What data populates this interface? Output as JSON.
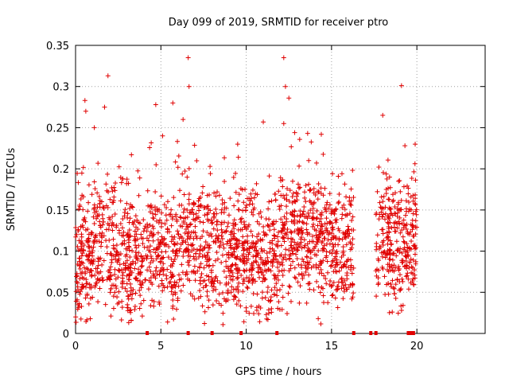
{
  "chart_data": {
    "type": "scatter",
    "title": "Day 099 of 2019, SRMTID for receiver ptro",
    "xlabel": "GPS time / hours",
    "ylabel": "SRMTID / TECUs",
    "xlim": [
      0,
      24
    ],
    "ylim": [
      0,
      0.35
    ],
    "xticks": [
      0,
      5,
      10,
      15,
      20
    ],
    "xtick_labels": [
      "0",
      "5",
      "10",
      "15",
      "20"
    ],
    "yticks": [
      0,
      0.05,
      0.1,
      0.15,
      0.2,
      0.25,
      0.3,
      0.35
    ],
    "ytick_labels": [
      "0",
      "0.05",
      "0.1",
      "0.15",
      "0.2",
      "0.25",
      "0.3",
      "0.35"
    ],
    "grid": true,
    "marker": "plus",
    "series": [
      {
        "name": "SRMTID",
        "color": "#e00000",
        "notable_points": [
          {
            "x": 0.55,
            "y": 0.283
          },
          {
            "x": 0.6,
            "y": 0.27
          },
          {
            "x": 1.1,
            "y": 0.25
          },
          {
            "x": 1.7,
            "y": 0.275
          },
          {
            "x": 1.9,
            "y": 0.313
          },
          {
            "x": 4.7,
            "y": 0.278
          },
          {
            "x": 5.1,
            "y": 0.24
          },
          {
            "x": 5.7,
            "y": 0.28
          },
          {
            "x": 6.3,
            "y": 0.26
          },
          {
            "x": 6.6,
            "y": 0.335
          },
          {
            "x": 6.65,
            "y": 0.3
          },
          {
            "x": 9.5,
            "y": 0.23
          },
          {
            "x": 11.0,
            "y": 0.257
          },
          {
            "x": 12.2,
            "y": 0.335
          },
          {
            "x": 12.3,
            "y": 0.3
          },
          {
            "x": 12.5,
            "y": 0.286
          },
          {
            "x": 12.2,
            "y": 0.255
          },
          {
            "x": 13.6,
            "y": 0.243
          },
          {
            "x": 14.4,
            "y": 0.242
          },
          {
            "x": 18.0,
            "y": 0.265
          },
          {
            "x": 18.4,
            "y": 0.19
          },
          {
            "x": 19.1,
            "y": 0.301
          },
          {
            "x": 19.3,
            "y": 0.228
          },
          {
            "x": 19.9,
            "y": 0.23
          },
          {
            "x": 19.1,
            "y": 0.028
          }
        ],
        "zero_points_x": [
          4.2,
          6.6,
          8.0,
          9.7,
          11.8,
          16.3,
          17.3,
          17.6,
          19.5,
          19.6,
          19.7,
          19.8
        ]
      }
    ],
    "density_profile": {
      "active_intervals_hours": [
        [
          0.0,
          16.3
        ],
        [
          17.6,
          20.0
        ]
      ],
      "typical_range": [
        0.02,
        0.2
      ],
      "median_by_hour": [
        0.09,
        0.11,
        0.1,
        0.08,
        0.1,
        0.09,
        0.11,
        0.1,
        0.1,
        0.1,
        0.09,
        0.09,
        0.12,
        0.12,
        0.11,
        0.1,
        0.1,
        null,
        0.11,
        0.12,
        0.11
      ]
    }
  }
}
